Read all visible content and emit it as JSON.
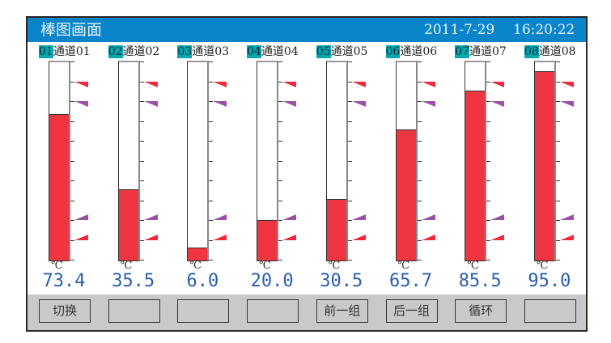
{
  "header": {
    "title": "棒图画面",
    "date": "2011-7-29",
    "time": "16:20:22"
  },
  "colors": {
    "titlebar": "#0a85c9",
    "bar_fill": "#ee3540",
    "alarm_high": "#ee2a3c",
    "alarm_purple": "#9b4fa8",
    "value_text": "#2a5db0",
    "channel_num_bg": "#00a8b0"
  },
  "scale": {
    "min": 0,
    "max": 100,
    "alarm_levels": [
      90,
      80,
      20,
      10
    ]
  },
  "channels": [
    {
      "num": "01",
      "name": "通道01",
      "unit": "℃",
      "value": "73.4"
    },
    {
      "num": "02",
      "name": "通道02",
      "unit": "℃",
      "value": "35.5"
    },
    {
      "num": "03",
      "name": "通道03",
      "unit": "℃",
      "value": "6.0"
    },
    {
      "num": "04",
      "name": "通道04",
      "unit": "℃",
      "value": "20.0"
    },
    {
      "num": "05",
      "name": "通道05",
      "unit": "℃",
      "value": "30.5"
    },
    {
      "num": "06",
      "name": "通道06",
      "unit": "℃",
      "value": "65.7"
    },
    {
      "num": "07",
      "name": "通道07",
      "unit": "℃",
      "value": "85.5"
    },
    {
      "num": "08",
      "name": "通道08",
      "unit": "℃",
      "value": "95.0"
    }
  ],
  "buttons": [
    {
      "label": "切换"
    },
    {
      "label": ""
    },
    {
      "label": ""
    },
    {
      "label": ""
    },
    {
      "label": "前一组"
    },
    {
      "label": "后一组"
    },
    {
      "label": "循环"
    },
    {
      "label": ""
    }
  ]
}
